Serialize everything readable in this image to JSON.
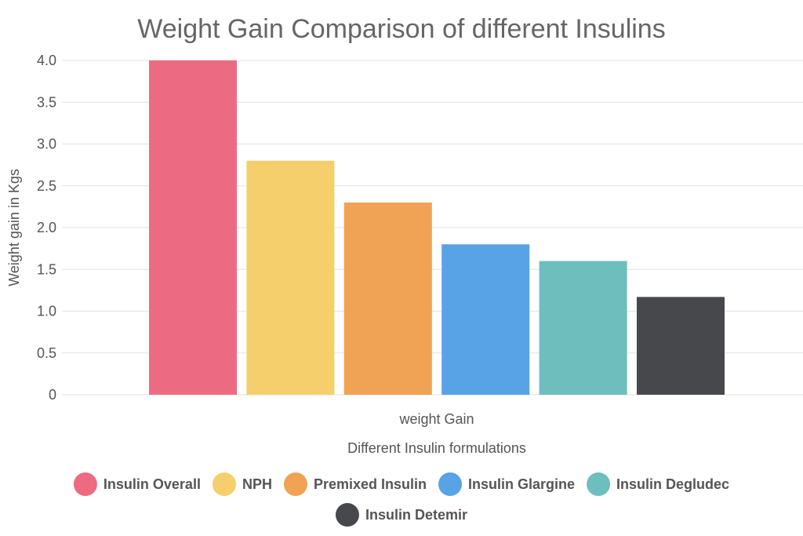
{
  "chart_data": {
    "type": "bar",
    "title": "Weight Gain Comparison of different Insulins",
    "xlabel": "Different Insulin formulations",
    "ylabel": "Weight gain in Kgs",
    "categories": [
      "weight Gain"
    ],
    "ylim": [
      0,
      4.0
    ],
    "ytick_labels": [
      "0",
      "0.5",
      "1.0",
      "1.5",
      "2.0",
      "2.5",
      "3.0",
      "3.5",
      "4.0"
    ],
    "series": [
      {
        "name": "Insulin Overall",
        "values": [
          4.0
        ],
        "color": "#ED6B82"
      },
      {
        "name": "NPH",
        "values": [
          2.8
        ],
        "color": "#F6CF6D"
      },
      {
        "name": "Premixed Insulin",
        "values": [
          2.3
        ],
        "color": "#F0A354"
      },
      {
        "name": "Insulin Glargine",
        "values": [
          1.8
        ],
        "color": "#57A3E5"
      },
      {
        "name": "Insulin Degludec",
        "values": [
          1.6
        ],
        "color": "#6EBEBE"
      },
      {
        "name": "Insulin Detemir",
        "values": [
          1.17
        ],
        "color": "#46484B"
      }
    ]
  }
}
